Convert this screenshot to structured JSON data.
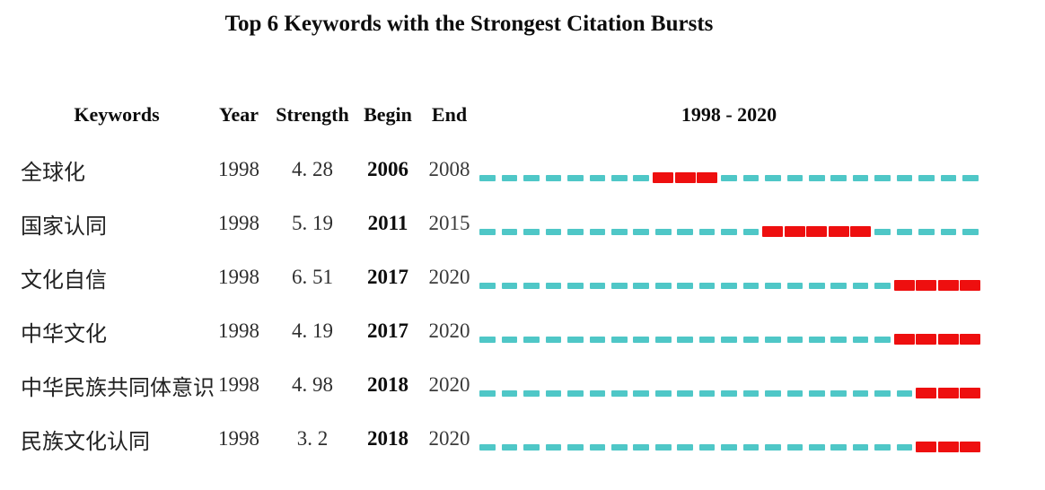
{
  "title": "Top 6 Keywords with the Strongest Citation Bursts",
  "columns": {
    "keywords": "Keywords",
    "year": "Year",
    "strength": "Strength",
    "begin": "Begin",
    "end": "End",
    "timeline": "1998 - 2020"
  },
  "rows": [
    {
      "keyword": "全球化",
      "year": "1998",
      "strength": "4. 28",
      "begin": "2006",
      "end": "2008"
    },
    {
      "keyword": "国家认同",
      "year": "1998",
      "strength": "5. 19",
      "begin": "2011",
      "end": "2015"
    },
    {
      "keyword": "文化自信",
      "year": "1998",
      "strength": "6. 51",
      "begin": "2017",
      "end": "2020"
    },
    {
      "keyword": "中华文化",
      "year": "1998",
      "strength": "4. 19",
      "begin": "2017",
      "end": "2020"
    },
    {
      "keyword": "中华民族共同体意识",
      "year": "1998",
      "strength": "4. 98",
      "begin": "2018",
      "end": "2020"
    },
    {
      "keyword": "民族文化认同",
      "year": "1998",
      "strength": "3. 2",
      "begin": "2018",
      "end": "2020"
    }
  ],
  "chart_data": {
    "type": "citation-burst-timeline",
    "title": "Top 6 Keywords with the Strongest Citation Bursts",
    "timeline_label": "1998 - 2020",
    "year_start": 1998,
    "year_end": 2020,
    "rows": [
      {
        "keyword": "全球化",
        "first_year": 1998,
        "strength": 4.28,
        "burst_begin": 2006,
        "burst_end": 2008
      },
      {
        "keyword": "国家认同",
        "first_year": 1998,
        "strength": 5.19,
        "burst_begin": 2011,
        "burst_end": 2015
      },
      {
        "keyword": "文化自信",
        "first_year": 1998,
        "strength": 6.51,
        "burst_begin": 2017,
        "burst_end": 2020
      },
      {
        "keyword": "中华文化",
        "first_year": 1998,
        "strength": 4.19,
        "burst_begin": 2017,
        "burst_end": 2020
      },
      {
        "keyword": "中华民族共同体意识",
        "first_year": 1998,
        "strength": 4.98,
        "burst_begin": 2018,
        "burst_end": 2020
      },
      {
        "keyword": "民族文化认同",
        "first_year": 1998,
        "strength": 3.2,
        "burst_begin": 2018,
        "burst_end": 2020
      }
    ],
    "colors": {
      "timeline": "#4fc7c7",
      "burst": "#ee0f0f"
    }
  }
}
